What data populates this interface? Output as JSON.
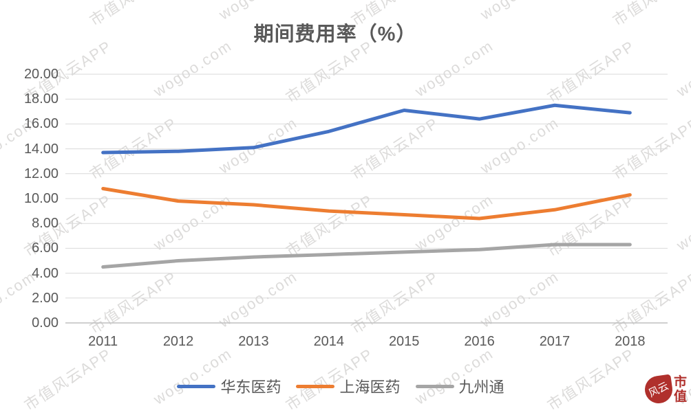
{
  "chart_data": {
    "type": "line",
    "title": "期间费用率（%）",
    "categories": [
      "2011",
      "2012",
      "2013",
      "2014",
      "2015",
      "2016",
      "2017",
      "2018"
    ],
    "series": [
      {
        "name": "华东医药",
        "color": "#4472C4",
        "values": [
          13.7,
          13.8,
          14.1,
          15.4,
          17.1,
          16.4,
          17.5,
          16.9
        ]
      },
      {
        "name": "上海医药",
        "color": "#ED7D31",
        "values": [
          10.8,
          9.8,
          9.5,
          9.0,
          8.7,
          8.4,
          9.1,
          10.3
        ]
      },
      {
        "name": "九州通",
        "color": "#A5A5A5",
        "values": [
          4.5,
          5.0,
          5.3,
          5.5,
          5.7,
          5.9,
          6.3,
          6.3
        ]
      }
    ],
    "ylim": [
      0,
      20
    ],
    "ytick_labels": [
      "0.00",
      "2.00",
      "4.00",
      "6.00",
      "8.00",
      "10.00",
      "12.00",
      "14.00",
      "16.00",
      "18.00",
      "20.00"
    ],
    "xlabel": "",
    "ylabel": "",
    "grid": true,
    "legend_position": "bottom",
    "gridline_color": "#D9D9D9",
    "axis_line_color": "#BFBFBF"
  },
  "watermark": {
    "texts": [
      "wogoo.com",
      "市值风云APP"
    ]
  },
  "logo": {
    "seal_text": "风云",
    "side_text_top": "市",
    "side_text_bottom": "值",
    "color": "#B0302C"
  }
}
